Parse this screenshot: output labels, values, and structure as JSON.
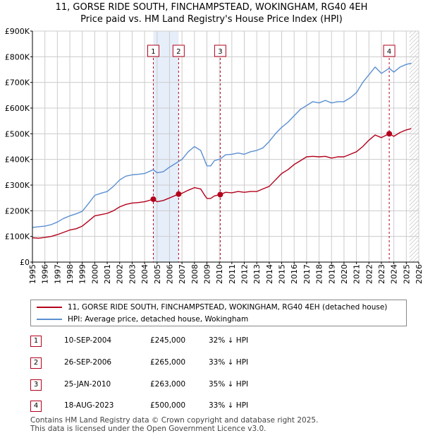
{
  "title_line1": "11, GORSE RIDE SOUTH, FINCHAMPSTEAD, WOKINGHAM, RG40 4EH",
  "title_line2": "Price paid vs. HM Land Registry's House Price Index (HPI)",
  "colors": {
    "red": "#b3001b",
    "blue": "#5b8fd1",
    "shade": "#e6eefa",
    "grid": "#cccccc"
  },
  "chart_data": {
    "type": "line",
    "title": "11, GORSE RIDE SOUTH, FINCHAMPSTEAD, WOKINGHAM, RG40 4EH — Price paid vs. HM Land Registry's House Price Index (HPI)",
    "xlim": [
      1995,
      2026
    ],
    "ylim": [
      0,
      900000
    ],
    "y_ticks": [
      0,
      100000,
      200000,
      300000,
      400000,
      500000,
      600000,
      700000,
      800000,
      900000
    ],
    "y_tick_labels": [
      "£0",
      "£100K",
      "£200K",
      "£300K",
      "£400K",
      "£500K",
      "£600K",
      "£700K",
      "£800K",
      "£900K"
    ],
    "x_ticks": [
      1995,
      1996,
      1997,
      1998,
      1999,
      2000,
      2001,
      2002,
      2003,
      2004,
      2005,
      2006,
      2007,
      2008,
      2009,
      2010,
      2011,
      2012,
      2013,
      2014,
      2015,
      2016,
      2017,
      2018,
      2019,
      2020,
      2021,
      2022,
      2023,
      2024,
      2025,
      2026
    ],
    "shaded_ranges": [
      [
        2004.7,
        2006.73
      ],
      [
        2010.07,
        2010.07
      ],
      [
        2023.63,
        2023.63
      ]
    ],
    "hatched_from": 2025.25,
    "series": [
      {
        "name": "11, GORSE RIDE SOUTH, FINCHAMPSTEAD, WOKINGHAM, RG40 4EH (detached house)",
        "color": "#b3001b",
        "x": [
          1995.0,
          1995.5,
          1996.0,
          1996.5,
          1997.0,
          1997.5,
          1998.0,
          1998.5,
          1999.0,
          1999.5,
          2000.0,
          2000.5,
          2001.0,
          2001.5,
          2002.0,
          2002.5,
          2003.0,
          2003.5,
          2004.0,
          2004.7,
          2005.0,
          2005.5,
          2006.0,
          2006.73,
          2007.0,
          2007.5,
          2008.0,
          2008.5,
          2008.8,
          2009.0,
          2009.3,
          2009.6,
          2010.07,
          2010.5,
          2011.0,
          2011.5,
          2012.0,
          2012.5,
          2013.0,
          2013.5,
          2014.0,
          2014.5,
          2015.0,
          2015.5,
          2016.0,
          2016.5,
          2017.0,
          2017.5,
          2018.0,
          2018.5,
          2019.0,
          2019.5,
          2020.0,
          2020.5,
          2021.0,
          2021.5,
          2022.0,
          2022.5,
          2023.0,
          2023.63,
          2024.0,
          2024.5,
          2025.0,
          2025.4
        ],
        "values": [
          95000,
          93000,
          96000,
          100000,
          107000,
          116000,
          125000,
          130000,
          140000,
          160000,
          180000,
          185000,
          190000,
          200000,
          215000,
          225000,
          230000,
          232000,
          235000,
          245000,
          235000,
          240000,
          250000,
          265000,
          268000,
          280000,
          290000,
          285000,
          262000,
          248000,
          248000,
          258000,
          263000,
          272000,
          270000,
          275000,
          272000,
          275000,
          275000,
          285000,
          295000,
          320000,
          345000,
          360000,
          380000,
          395000,
          410000,
          412000,
          410000,
          412000,
          405000,
          410000,
          410000,
          420000,
          430000,
          450000,
          475000,
          495000,
          485000,
          500000,
          490000,
          505000,
          515000,
          520000
        ]
      },
      {
        "name": "HPI: Average price, detached house, Wokingham",
        "color": "#5b8fd1",
        "x": [
          1995.0,
          1995.5,
          1996.0,
          1996.5,
          1997.0,
          1997.5,
          1998.0,
          1998.5,
          1999.0,
          1999.5,
          2000.0,
          2000.5,
          2001.0,
          2001.5,
          2002.0,
          2002.5,
          2003.0,
          2003.5,
          2004.0,
          2004.7,
          2005.0,
          2005.5,
          2006.0,
          2006.73,
          2007.0,
          2007.5,
          2008.0,
          2008.5,
          2008.8,
          2009.0,
          2009.3,
          2009.6,
          2010.07,
          2010.5,
          2011.0,
          2011.5,
          2012.0,
          2012.5,
          2013.0,
          2013.5,
          2014.0,
          2014.5,
          2015.0,
          2015.5,
          2016.0,
          2016.5,
          2017.0,
          2017.5,
          2018.0,
          2018.5,
          2019.0,
          2019.5,
          2020.0,
          2020.5,
          2021.0,
          2021.5,
          2022.0,
          2022.5,
          2023.0,
          2023.63,
          2024.0,
          2024.5,
          2025.0,
          2025.4
        ],
        "values": [
          135000,
          138000,
          140000,
          146000,
          156000,
          170000,
          180000,
          188000,
          198000,
          228000,
          260000,
          268000,
          275000,
          295000,
          320000,
          335000,
          340000,
          342000,
          345000,
          360000,
          348000,
          352000,
          370000,
          392000,
          400000,
          430000,
          450000,
          435000,
          400000,
          375000,
          375000,
          395000,
          402000,
          418000,
          420000,
          425000,
          420000,
          430000,
          435000,
          445000,
          470000,
          500000,
          525000,
          545000,
          570000,
          595000,
          610000,
          625000,
          620000,
          630000,
          620000,
          625000,
          625000,
          640000,
          660000,
          700000,
          730000,
          760000,
          735000,
          755000,
          740000,
          760000,
          770000,
          775000
        ]
      }
    ],
    "sales": [
      {
        "label": "1",
        "year": 2004.7,
        "price": 245000
      },
      {
        "label": "2",
        "year": 2006.73,
        "price": 265000
      },
      {
        "label": "3",
        "year": 2010.07,
        "price": 263000
      },
      {
        "label": "4",
        "year": 2023.63,
        "price": 500000
      }
    ]
  },
  "legend": {
    "red_label": "11, GORSE RIDE SOUTH, FINCHAMPSTEAD, WOKINGHAM, RG40 4EH (detached house)",
    "blue_label": "HPI: Average price, detached house, Wokingham"
  },
  "sales_table": [
    {
      "num": "1",
      "date": "10-SEP-2004",
      "price": "£245,000",
      "diff": "32% ↓ HPI"
    },
    {
      "num": "2",
      "date": "26-SEP-2006",
      "price": "£265,000",
      "diff": "33% ↓ HPI"
    },
    {
      "num": "3",
      "date": "25-JAN-2010",
      "price": "£263,000",
      "diff": "35% ↓ HPI"
    },
    {
      "num": "4",
      "date": "18-AUG-2023",
      "price": "£500,000",
      "diff": "33% ↓ HPI"
    }
  ],
  "footer_line1": "Contains HM Land Registry data © Crown copyright and database right 2025.",
  "footer_line2": "This data is licensed under the Open Government Licence v3.0."
}
